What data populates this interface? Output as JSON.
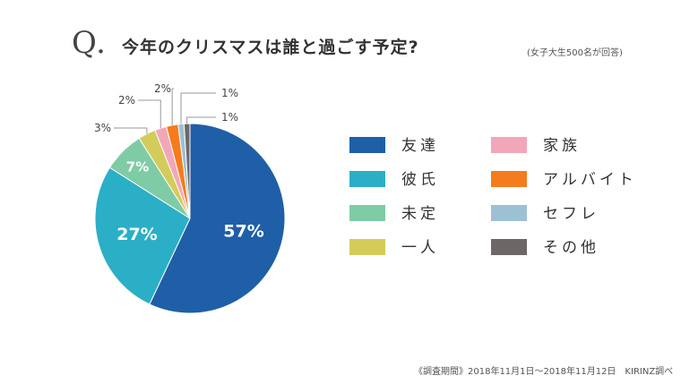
{
  "header": {
    "q_mark": "Q.",
    "title": "今年のクリスマスは誰と過ごす予定?",
    "subnote": "(女子大生500名が回答)"
  },
  "footer": {
    "note": "《調査期間》2018年11月1日〜2018年11月12日　KIRINZ調べ"
  },
  "chart_data": {
    "type": "pie",
    "title": "今年のクリスマスは誰と過ごす予定?",
    "legend_position": "right",
    "slices": [
      {
        "label": "友達",
        "value": 57,
        "display": "57%",
        "color": "#1f5fa8"
      },
      {
        "label": "彼氏",
        "value": 27,
        "display": "27%",
        "color": "#2bafc6"
      },
      {
        "label": "未定",
        "value": 7,
        "display": "7%",
        "color": "#7fcba5"
      },
      {
        "label": "一人",
        "value": 3,
        "display": "3%",
        "color": "#d4cc5a"
      },
      {
        "label": "家族",
        "value": 2,
        "display": "2%",
        "color": "#f2a7b8"
      },
      {
        "label": "アルバイト",
        "value": 2,
        "display": "2%",
        "color": "#f57c1c"
      },
      {
        "label": "セフレ",
        "value": 1,
        "display": "1%",
        "color": "#9cc1d4"
      },
      {
        "label": "その他",
        "value": 1,
        "display": "1%",
        "color": "#6d6767"
      }
    ],
    "legend_order": [
      "友達",
      "家族",
      "彼氏",
      "アルバイト",
      "未定",
      "セフレ",
      "一人",
      "その他"
    ]
  }
}
